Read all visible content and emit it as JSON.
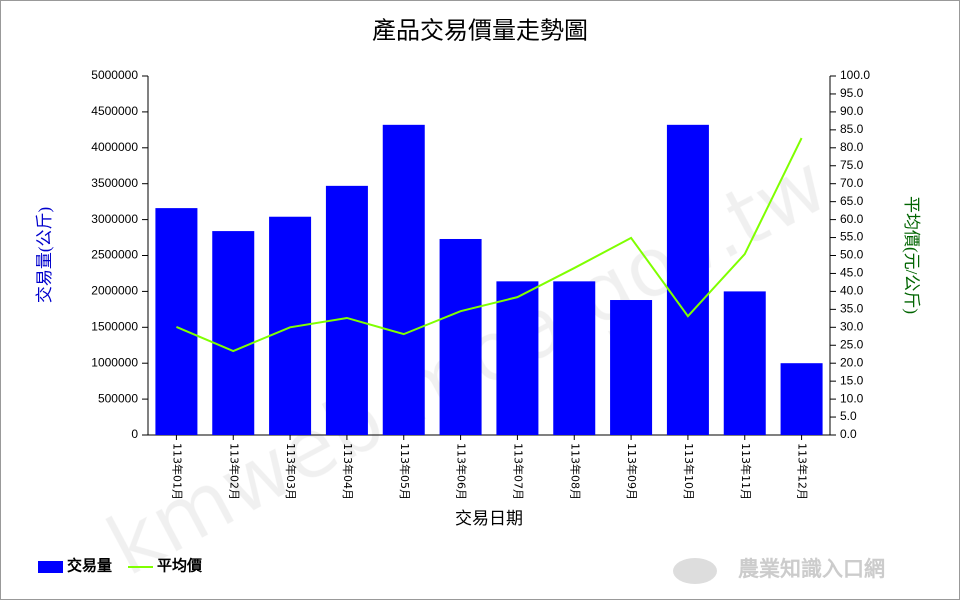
{
  "chart_data": {
    "type": "bar-line",
    "title": "產品交易價量走勢圖",
    "x_label": "交易日期",
    "y_label": "交易量(公斤)",
    "y2_label": "平均價(元/公斤)",
    "watermark": "kmweb.moa.gov.tw",
    "logo": "農業知識入口網",
    "categories": [
      "113年01月",
      "113年02月",
      "113年03月",
      "113年04月",
      "113年05月",
      "113年06月",
      "113年07月",
      "113年08月",
      "113年09月",
      "113年10月",
      "113年11月",
      "113年12月"
    ],
    "series": [
      {
        "name": "交易量",
        "color": "#0000ff",
        "type": "bar",
        "values": [
          3160000,
          2840000,
          3040000,
          3470000,
          4320000,
          2730000,
          2140000,
          2140000,
          1880000,
          4320000,
          2000000,
          1000000
        ]
      },
      {
        "name": "平均價",
        "color": "#7fff00",
        "type": "line",
        "axis": "y2",
        "values": [
          30.1,
          23.4,
          30.0,
          32.6,
          28.1,
          34.5,
          38.4,
          46.5,
          54.9,
          33.1,
          50.4,
          82.7
        ]
      }
    ],
    "ylim": [
      0,
      5000000
    ],
    "yticks": [
      0,
      500000,
      1000000,
      1500000,
      2000000,
      2500000,
      3000000,
      3500000,
      4000000,
      4500000,
      5000000
    ],
    "y2lim": [
      0,
      100
    ],
    "y2ticks": [
      {
        "value": 0,
        "label": "0.0"
      },
      {
        "value": 5,
        "label": "5.0"
      },
      {
        "value": 10,
        "label": "10.0"
      },
      {
        "value": 15,
        "label": "15.0"
      },
      {
        "value": 20,
        "label": "20.0"
      },
      {
        "value": 25,
        "label": "25.0"
      },
      {
        "value": 30,
        "label": "30.0"
      },
      {
        "value": 35,
        "label": "35.0"
      },
      {
        "value": 40,
        "label": "40.0"
      },
      {
        "value": 45,
        "label": "45.0"
      },
      {
        "value": 50,
        "label": "50.0"
      },
      {
        "value": 55,
        "label": "55.0"
      },
      {
        "value": 60,
        "label": "60.0"
      },
      {
        "value": 65,
        "label": "65.0"
      },
      {
        "value": 70,
        "label": "70.0"
      },
      {
        "value": 75,
        "label": "75.0"
      },
      {
        "value": 80,
        "label": "80.0"
      },
      {
        "value": 85,
        "label": "85.0"
      },
      {
        "value": 90,
        "label": "90.0"
      },
      {
        "value": 95,
        "label": "95.0"
      },
      {
        "value": 100,
        "label": "100.0"
      }
    ],
    "y_label_color": "#0000cc",
    "y2_label_color": "#006400",
    "legend": "bottom-left"
  }
}
